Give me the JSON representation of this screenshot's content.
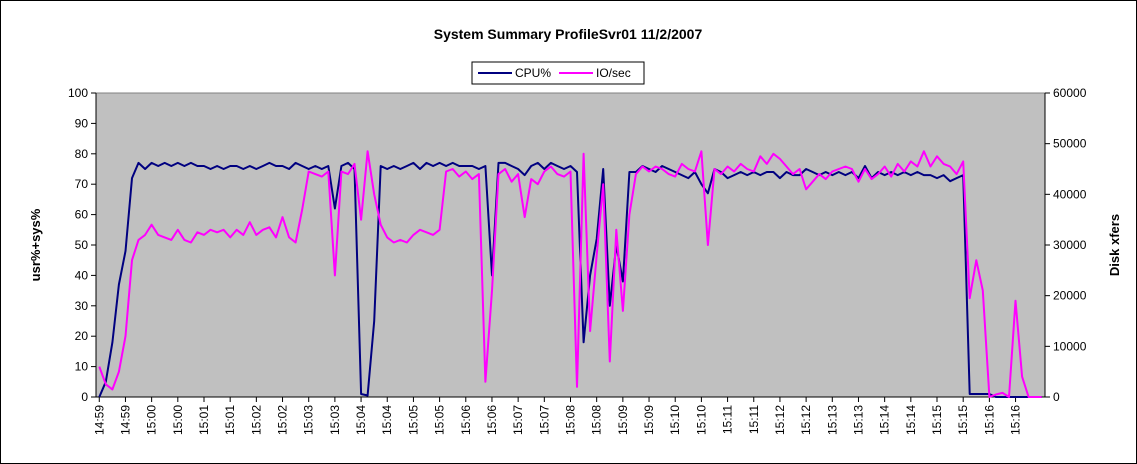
{
  "chart_data": {
    "type": "line",
    "title": "System Summary ProfileSvr01  11/2/2007",
    "ylabel": "usr%+sys%",
    "y2label": "Disk xfers",
    "ylim": [
      0,
      100
    ],
    "yticks": [
      0,
      10,
      20,
      30,
      40,
      50,
      60,
      70,
      80,
      90,
      100
    ],
    "y2lim": [
      0,
      60000
    ],
    "y2ticks": [
      0,
      10000,
      20000,
      30000,
      40000,
      50000,
      60000
    ],
    "grid": false,
    "legend": "top",
    "categories": [
      "14:59",
      null,
      null,
      null,
      "14:59",
      null,
      null,
      null,
      "15:00",
      null,
      null,
      null,
      "15:00",
      null,
      null,
      null,
      "15:01",
      null,
      null,
      null,
      "15:01",
      null,
      null,
      null,
      "15:02",
      null,
      null,
      null,
      "15:02",
      null,
      null,
      null,
      "15:03",
      null,
      null,
      null,
      "15:03",
      null,
      null,
      null,
      "15:04",
      null,
      null,
      null,
      "15:04",
      null,
      null,
      null,
      "15:05",
      null,
      null,
      null,
      "15:05",
      null,
      null,
      null,
      "15:06",
      null,
      null,
      null,
      "15:06",
      null,
      null,
      null,
      "15:07",
      null,
      null,
      null,
      "15:07",
      null,
      null,
      null,
      "15:08",
      null,
      null,
      null,
      "15:08",
      null,
      null,
      null,
      "15:09",
      null,
      null,
      null,
      "15:09",
      null,
      null,
      null,
      "15:10",
      null,
      null,
      null,
      "15:10",
      null,
      null,
      null,
      "15:11",
      null,
      null,
      null,
      "15:11",
      null,
      null,
      null,
      "15:12",
      null,
      null,
      null,
      "15:12",
      null,
      null,
      null,
      "15:13",
      null,
      null,
      null,
      "15:13",
      null,
      null,
      null,
      "15:14",
      null,
      null,
      null,
      "15:14",
      null,
      null,
      null,
      "15:15",
      null,
      null,
      null,
      "15:15",
      null,
      null,
      null,
      "15:16",
      null,
      null,
      null,
      "15:16",
      null,
      null,
      null,
      null
    ],
    "series": [
      {
        "name": "CPU%",
        "color": "#000080",
        "values": [
          0,
          5,
          18,
          37,
          48,
          72,
          77,
          75,
          77,
          76,
          77,
          76,
          77,
          76,
          77,
          76,
          76,
          75,
          76,
          75,
          76,
          76,
          75,
          76,
          75,
          76,
          77,
          76,
          76,
          75,
          77,
          76,
          75,
          76,
          75,
          76,
          62,
          76,
          77,
          75,
          1,
          0.5,
          25,
          76,
          75,
          76,
          75,
          76,
          77,
          75,
          77,
          76,
          77,
          76,
          77,
          76,
          76,
          76,
          75,
          76,
          40,
          77,
          77,
          76,
          75,
          73,
          76,
          77,
          75,
          77,
          76,
          75,
          76,
          74,
          18,
          40,
          52,
          75,
          30,
          50,
          38,
          74,
          74,
          76,
          75,
          74,
          76,
          75,
          74,
          73,
          72,
          74,
          70,
          67,
          75,
          74,
          72,
          73,
          74,
          73,
          74,
          73,
          74,
          74,
          72,
          74,
          73,
          73,
          75,
          74,
          73,
          74,
          73,
          74,
          73,
          74,
          72,
          76,
          72,
          74,
          73,
          74,
          73,
          74,
          73,
          74,
          73,
          73,
          72,
          73,
          71,
          72,
          73,
          1,
          1,
          1,
          1,
          0,
          0,
          0,
          0,
          0,
          0,
          0,
          0
        ]
      },
      {
        "name": "IO/sec",
        "color": "#ff00ff",
        "axis": "y2",
        "values": [
          6000,
          2500,
          1500,
          5000,
          12000,
          27000,
          31000,
          32000,
          34000,
          32000,
          31500,
          31000,
          33000,
          31000,
          30500,
          32500,
          32000,
          33000,
          32500,
          33000,
          31500,
          33000,
          32000,
          34500,
          32000,
          33000,
          33500,
          31500,
          35500,
          31500,
          30500,
          37000,
          44500,
          44000,
          43500,
          44500,
          24000,
          44500,
          44000,
          46000,
          35000,
          48500,
          40000,
          34000,
          31500,
          30500,
          31000,
          30500,
          32000,
          33000,
          32500,
          32000,
          33000,
          44500,
          45000,
          43500,
          44500,
          43000,
          44000,
          3000,
          21000,
          44000,
          45000,
          42500,
          44000,
          35500,
          43000,
          42000,
          44500,
          45500,
          44000,
          43500,
          44500,
          2000,
          48000,
          13000,
          28000,
          42000,
          7000,
          33000,
          17000,
          36000,
          44000,
          45500,
          44500,
          45500,
          45000,
          44000,
          43500,
          46000,
          45000,
          44500,
          48500,
          30000,
          45000,
          44000,
          45500,
          44500,
          46000,
          45000,
          44500,
          47500,
          46000,
          48000,
          47000,
          45500,
          44000,
          45000,
          41000,
          42500,
          44000,
          43000,
          44500,
          45000,
          45500,
          45000,
          42500,
          45000,
          43000,
          44000,
          45500,
          43500,
          46000,
          44500,
          46500,
          45500,
          48500,
          45500,
          47500,
          46000,
          45500,
          44000,
          46500,
          19500,
          27000,
          21000,
          0,
          500,
          800,
          0,
          19000,
          4000,
          0,
          0,
          0
        ]
      }
    ]
  }
}
